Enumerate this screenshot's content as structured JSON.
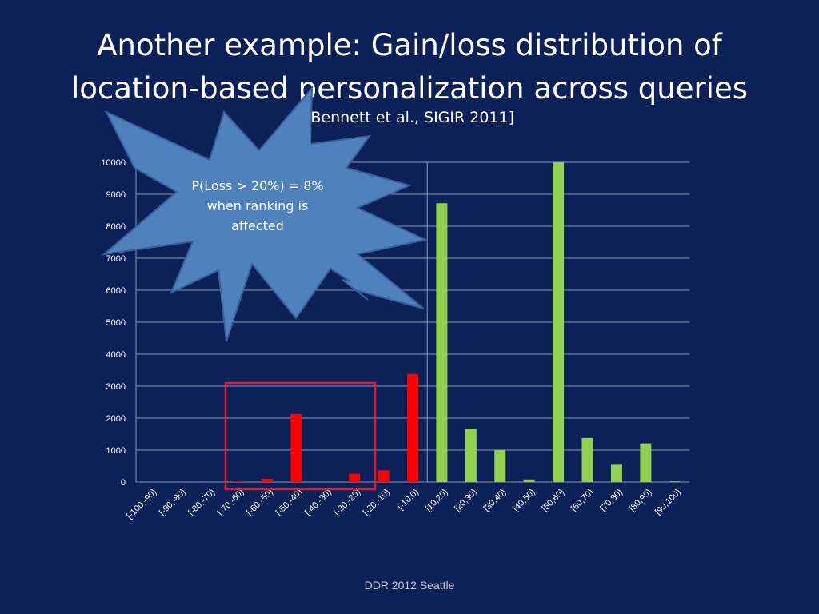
{
  "slide": {
    "title_line1": "Another example: Gain/loss distribution of",
    "title_line2": "location-based personalization across queries",
    "subtitle": "[Bennett et al., SIGIR 2011]",
    "callout_line1": "P(Loss > 20%) = 8%",
    "callout_line2": "when ranking is",
    "callout_line3": "affected",
    "footer": "DDR 2012 Seattle"
  },
  "colors": {
    "background": "#0b2157",
    "loss": "#ff0000",
    "gain": "#92d050",
    "highlight_box": "#e8182a",
    "callout_fill": "#4f81bd",
    "grid": "#8a96b5"
  },
  "chart_data": {
    "type": "bar",
    "title": "",
    "xlabel": "",
    "ylabel": "",
    "ylim": [
      0,
      10000
    ],
    "yticks": [
      0,
      1000,
      2000,
      3000,
      4000,
      5000,
      6000,
      7000,
      8000,
      9000,
      10000
    ],
    "ytick_labels": [
      "0",
      "1000",
      "2000",
      "3000",
      "4000",
      "5000",
      "6000",
      "7000",
      "8000",
      "9000",
      "10000"
    ],
    "grid": true,
    "categories": [
      "[-100,-90)",
      "[-90,-80)",
      "[-80,-70)",
      "[-70,-60)",
      "[-60,-50)",
      "[-50,-40)",
      "[-40,-30)",
      "[-30,-20)",
      "[-20,-10)",
      "[-10,0)",
      "[10,20)",
      "[20,30)",
      "[30,40)",
      "[40,50)",
      "[50,60)",
      "[60,70)",
      "[70,80)",
      "[80,90)",
      "[90,100)"
    ],
    "values": [
      0,
      0,
      0,
      20,
      100,
      2130,
      0,
      260,
      370,
      3380,
      8720,
      1670,
      1000,
      80,
      10000,
      1380,
      540,
      1210,
      20
    ],
    "bar_groups": [
      "loss",
      "loss",
      "loss",
      "loss",
      "loss",
      "loss",
      "loss",
      "loss",
      "loss",
      "loss",
      "gain",
      "gain",
      "gain",
      "gain",
      "gain",
      "gain",
      "gain",
      "gain",
      "gain"
    ]
  }
}
